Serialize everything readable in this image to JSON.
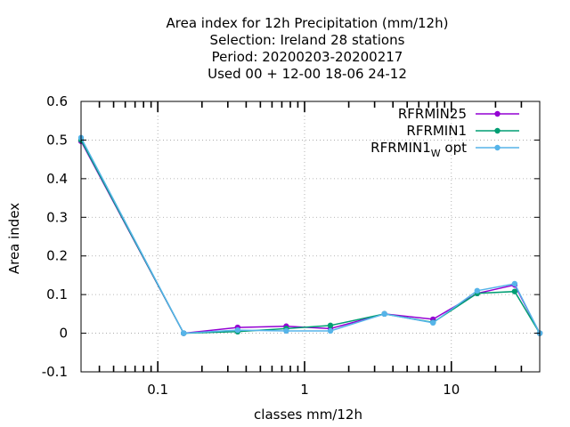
{
  "chart_data": {
    "type": "line",
    "title": [
      "Area index  for 12h Precipitation (mm/12h)",
      "Selection: Ireland     28 stations",
      "Period: 20200203-20200217",
      "Used  00 + 12-00 18-06 24-12"
    ],
    "xlabel": "classes mm/12h",
    "ylabel": "Area index",
    "xscale": "log",
    "xlim": [
      0.03,
      40
    ],
    "ylim": [
      -0.1,
      0.6
    ],
    "y_ticks": [
      -0.1,
      0,
      0.1,
      0.2,
      0.3,
      0.4,
      0.5,
      0.6
    ],
    "y_tick_labels": [
      "-0.1",
      "0",
      "0.1",
      "0.2",
      "0.3",
      "0.4",
      "0.5",
      "0.6"
    ],
    "x_ticks": [
      0.1,
      1,
      10
    ],
    "x_tick_labels": [
      "0.1",
      "1",
      "10"
    ],
    "grid": true,
    "legend_position": "top-right",
    "x": [
      0.03,
      0.15,
      0.35,
      0.75,
      1.5,
      3.5,
      7.5,
      15,
      27,
      40
    ],
    "series": [
      {
        "name": "RFRMIN25",
        "legend": {
          "main": "RFRMIN25",
          "sub": "",
          "tail": ""
        },
        "color": "#9400d3",
        "values": [
          0.497,
          0.0,
          0.015,
          0.018,
          0.012,
          0.05,
          0.036,
          0.103,
          0.125,
          0.0
        ]
      },
      {
        "name": "RFRMIN1",
        "legend": {
          "main": "RFRMIN1",
          "sub": "",
          "tail": ""
        },
        "color": "#009e73",
        "values": [
          0.5,
          0.0,
          0.004,
          0.012,
          0.02,
          0.05,
          0.028,
          0.103,
          0.108,
          0.0
        ]
      },
      {
        "name": "RFRMIN1_W opt",
        "legend": {
          "main": "RFRMIN1",
          "sub": "W",
          "tail": " opt"
        },
        "color": "#56b4e9",
        "values": [
          0.506,
          0.0,
          0.008,
          0.006,
          0.006,
          0.05,
          0.027,
          0.11,
          0.128,
          0.0
        ]
      }
    ]
  }
}
